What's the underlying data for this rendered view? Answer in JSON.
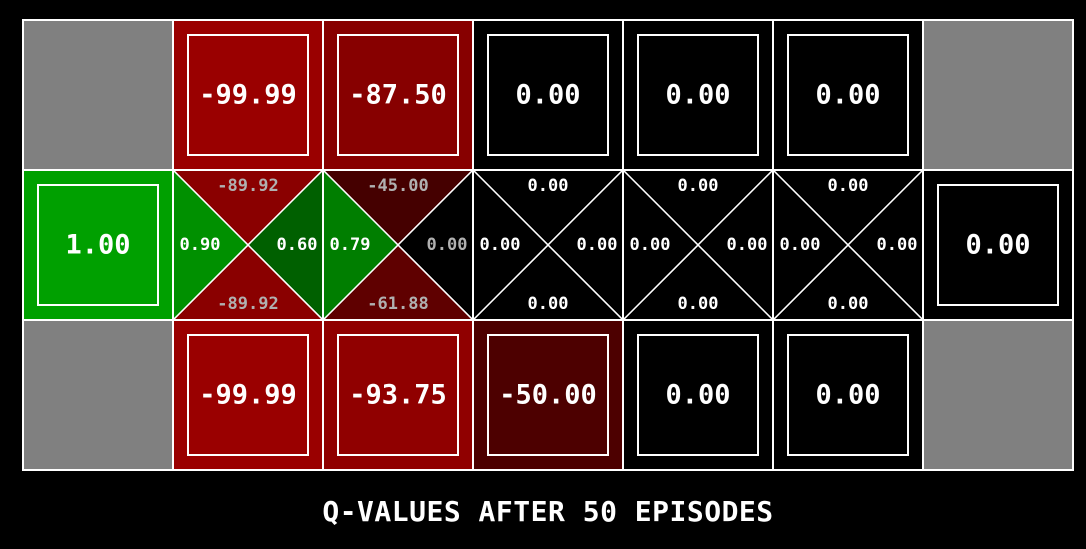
{
  "caption": "Q-VALUES AFTER 50 EPISODES",
  "colors": {
    "wall": "#808080",
    "grid_line": "#ffffff",
    "background": "#000000",
    "text_bright": "#ffffff",
    "text_dim": "#b0b0b0",
    "positive_green": "#00a000",
    "negative_red": "#9a0000"
  },
  "grid": {
    "rows": [
      [
        {
          "type": "wall"
        },
        {
          "type": "value",
          "label": "-99.99",
          "value": -99.99
        },
        {
          "type": "value",
          "label": "-87.50",
          "value": -87.5
        },
        {
          "type": "value",
          "label": "0.00",
          "value": 0
        },
        {
          "type": "value",
          "label": "0.00",
          "value": 0
        },
        {
          "type": "value",
          "label": "0.00",
          "value": 0
        },
        {
          "type": "wall"
        }
      ],
      [
        {
          "type": "value",
          "label": "1.00",
          "value": 1.0
        },
        {
          "type": "q",
          "north": {
            "label": "-89.92",
            "value": -89.92
          },
          "south": {
            "label": "-89.92",
            "value": -89.92
          },
          "west": {
            "label": "0.90",
            "value": 0.9
          },
          "east": {
            "label": "0.60",
            "value": 0.6
          }
        },
        {
          "type": "q",
          "north": {
            "label": "-45.00",
            "value": -45.0
          },
          "south": {
            "label": "-61.88",
            "value": -61.88
          },
          "west": {
            "label": "0.79",
            "value": 0.79
          },
          "east": {
            "label": "0.00",
            "value": 0
          }
        },
        {
          "type": "q",
          "north": {
            "label": "0.00",
            "value": 0
          },
          "south": {
            "label": "0.00",
            "value": 0
          },
          "west": {
            "label": "0.00",
            "value": 0
          },
          "east": {
            "label": "0.00",
            "value": 0
          }
        },
        {
          "type": "q",
          "north": {
            "label": "0.00",
            "value": 0
          },
          "south": {
            "label": "0.00",
            "value": 0
          },
          "west": {
            "label": "0.00",
            "value": 0
          },
          "east": {
            "label": "0.00",
            "value": 0
          }
        },
        {
          "type": "q",
          "north": {
            "label": "0.00",
            "value": 0
          },
          "south": {
            "label": "0.00",
            "value": 0
          },
          "west": {
            "label": "0.00",
            "value": 0
          },
          "east": {
            "label": "0.00",
            "value": 0
          }
        },
        {
          "type": "value",
          "label": "0.00",
          "value": 0
        }
      ],
      [
        {
          "type": "wall"
        },
        {
          "type": "value",
          "label": "-99.99",
          "value": -99.99
        },
        {
          "type": "value",
          "label": "-93.75",
          "value": -93.75
        },
        {
          "type": "value",
          "label": "-50.00",
          "value": -50.0
        },
        {
          "type": "value",
          "label": "0.00",
          "value": 0
        },
        {
          "type": "value",
          "label": "0.00",
          "value": 0
        },
        {
          "type": "wall"
        }
      ]
    ]
  }
}
